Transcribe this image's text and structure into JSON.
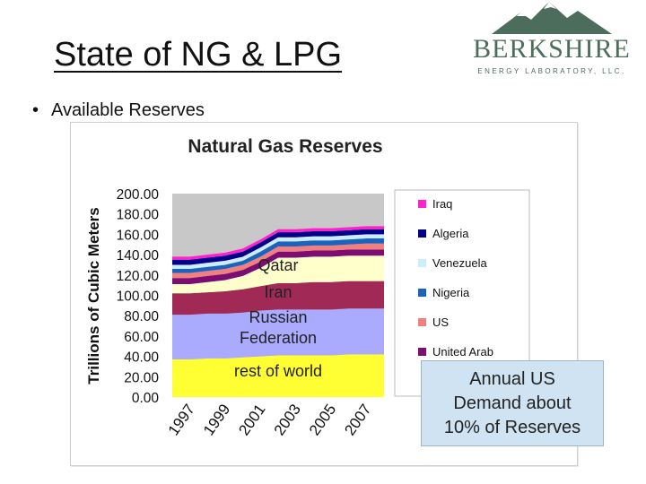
{
  "slide": {
    "title": "State of NG & LPG",
    "bullet": "Available Reserves",
    "callout": [
      "Annual US",
      "Demand about",
      "10% of Reserves"
    ]
  },
  "logo": {
    "name": "BERKSHIRE",
    "subtitle": "ENERGY LABORATORY, LLC.",
    "color": "#4c6c5c"
  },
  "chart_data": {
    "type": "area",
    "title": "Natural Gas Reserves",
    "ylabel": "Trillions of Cubic Meters",
    "xlabel": "",
    "ylim": [
      0,
      200
    ],
    "yticks": [
      "0.00",
      "20.00",
      "40.00",
      "60.00",
      "80.00",
      "100.00",
      "120.00",
      "140.00",
      "160.00",
      "180.00",
      "200.00"
    ],
    "x": [
      1996,
      1997,
      1998,
      1999,
      2000,
      2001,
      2002,
      2003,
      2004,
      2005,
      2006,
      2007,
      2008
    ],
    "xticks": [
      "1997",
      "1999",
      "2001",
      "2003",
      "2005",
      "2007"
    ],
    "stacked": true,
    "grid": false,
    "legend_position": "right",
    "background_color": "#c8c8c8",
    "series": [
      {
        "name": "rest of world",
        "label": "rest of world",
        "color": "#ffff33",
        "values": [
          37,
          37,
          38,
          38,
          39,
          40,
          41,
          41,
          41,
          41,
          42,
          42,
          42
        ]
      },
      {
        "name": "Russian Federation",
        "label": "Russian\nFederation",
        "color": "#aaaaff",
        "values": [
          44,
          44,
          44,
          44,
          44,
          45,
          45,
          45,
          45,
          45,
          45,
          45,
          45
        ]
      },
      {
        "name": "Iran",
        "label": "Iran",
        "color": "#a02a55",
        "values": [
          21,
          21,
          21,
          22,
          23,
          24,
          26,
          26,
          27,
          27,
          27,
          27,
          27
        ]
      },
      {
        "name": "Qatar",
        "label": "Qatar",
        "color": "#ffffcc",
        "values": [
          9,
          9,
          10,
          11,
          13,
          18,
          25,
          25,
          25,
          25,
          25,
          25,
          25
        ]
      },
      {
        "name": "United Arab",
        "label": "",
        "color": "#7b0d73",
        "values": [
          6,
          6,
          6,
          6,
          6,
          6,
          6,
          6,
          6,
          6,
          6,
          6,
          6
        ]
      },
      {
        "name": "US",
        "label": "",
        "color": "#f08080",
        "values": [
          5,
          5,
          5,
          5,
          5,
          5,
          5,
          5,
          5,
          5,
          5,
          6,
          6
        ]
      },
      {
        "name": "Nigeria",
        "label": "",
        "color": "#1c63bd",
        "values": [
          4,
          4,
          4,
          4,
          4,
          5,
          5,
          5,
          5,
          5,
          5,
          5,
          5
        ]
      },
      {
        "name": "Venezuela",
        "label": "",
        "color": "#ccecff",
        "values": [
          4,
          4,
          4,
          4,
          4,
          4,
          4,
          4,
          4,
          4,
          4,
          4,
          4
        ]
      },
      {
        "name": "Algeria",
        "label": "",
        "color": "#00008b",
        "values": [
          5,
          5,
          5,
          5,
          5,
          5,
          5,
          5,
          5,
          5,
          5,
          5,
          5
        ]
      },
      {
        "name": "Iraq",
        "label": "",
        "color": "#ff22cc",
        "values": [
          3,
          3,
          3,
          3,
          3,
          3,
          3,
          3,
          3,
          3,
          3,
          3,
          3
        ]
      }
    ],
    "legend": [
      "Iraq",
      "Algeria",
      "Venezuela",
      "Nigeria",
      "US",
      "United Arab"
    ]
  }
}
